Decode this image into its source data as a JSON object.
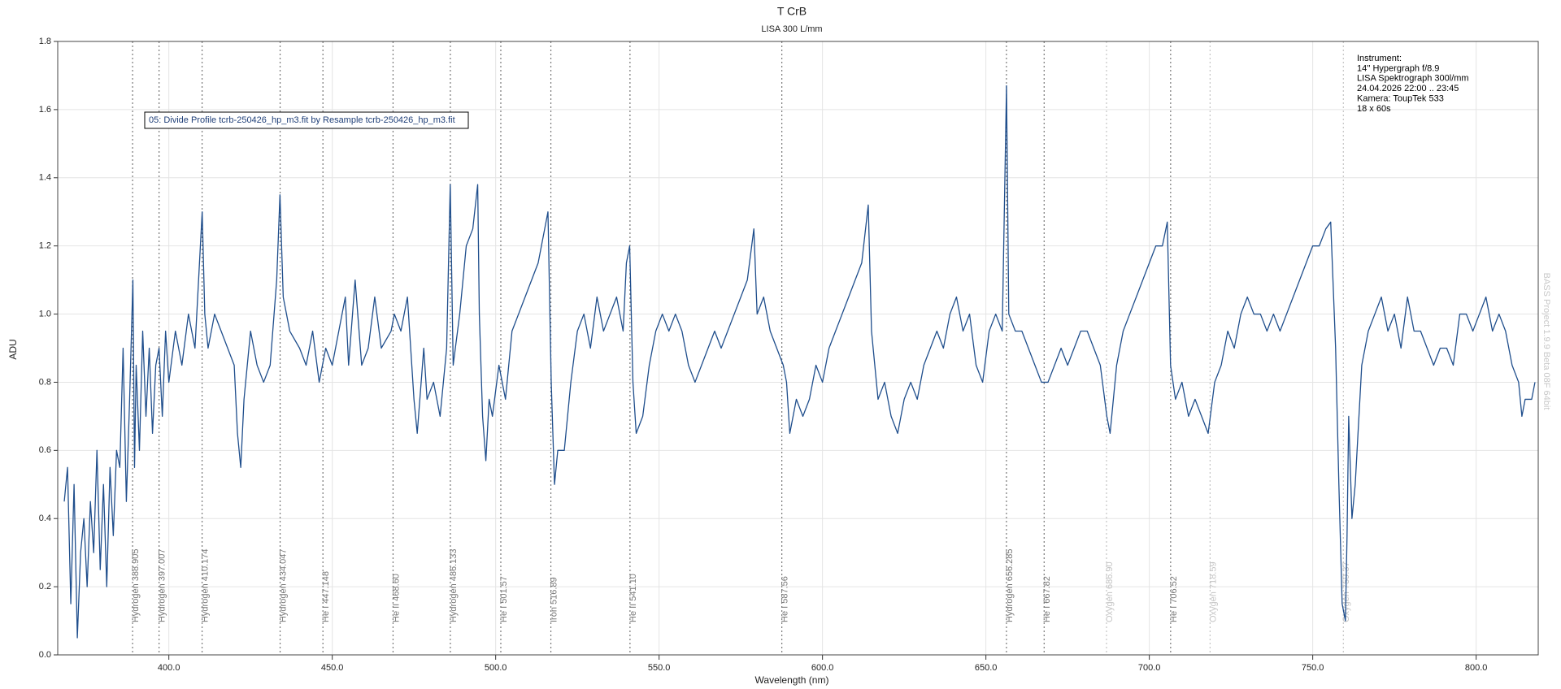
{
  "chart_data": {
    "type": "line",
    "title": "T CrB",
    "subtitle": "LISA 300 L/mm",
    "xlabel": "Wavelength (nm)",
    "ylabel": "ADU",
    "annotation": "05: Divide Profile tcrb-250426_hp_m3.fit by Resample tcrb-250426_hp_m3.fit",
    "info": [
      "Instrument:",
      "14'' Hypergraph f/8.9",
      "LISA Spektrograph 300l/mm",
      "24.04.2026 22:00 .. 23:45",
      "Kamera: ToupTek 533",
      "18 x 60s"
    ],
    "watermark": "BASS Project 1.9.9 Beta 08F 64bit",
    "color": "#1f4e8c",
    "grid": true,
    "xlim": [
      366,
      819
    ],
    "ylim": [
      0,
      1.8
    ],
    "xticks": [
      {
        "value": 400,
        "label": "400.0"
      },
      {
        "value": 450,
        "label": "450.0"
      },
      {
        "value": 500,
        "label": "500.0"
      },
      {
        "value": 550,
        "label": "550.0"
      },
      {
        "value": 600,
        "label": "600.0"
      },
      {
        "value": 650,
        "label": "650.0"
      },
      {
        "value": 700,
        "label": "700.0"
      },
      {
        "value": 750,
        "label": "750.0"
      },
      {
        "value": 800,
        "label": "800.0"
      }
    ],
    "yticks": [
      {
        "value": 0,
        "label": "0.0"
      },
      0.2,
      0.4,
      0.6,
      0.8,
      {
        "value": 1,
        "label": "1.0"
      },
      1.2,
      1.4,
      1.6,
      1.8
    ],
    "lines": [
      {
        "x": 388.905,
        "label": "Hydrogen 388.905",
        "color": "#777777"
      },
      {
        "x": 397.007,
        "label": "Hydrogen 397.007",
        "color": "#777777"
      },
      {
        "x": 410.174,
        "label": "Hydrogen 410.174",
        "color": "#777777"
      },
      {
        "x": 434.047,
        "label": "Hydrogen 434.047",
        "color": "#777777"
      },
      {
        "x": 447.148,
        "label": "He I 447.148",
        "color": "#777777"
      },
      {
        "x": 468.6,
        "label": "He II 468.60",
        "color": "#777777"
      },
      {
        "x": 486.133,
        "label": "Hydrogen 486.133",
        "color": "#777777"
      },
      {
        "x": 501.57,
        "label": "He I 501.57",
        "color": "#777777"
      },
      {
        "x": 516.89,
        "label": "Iron 516.89",
        "color": "#777777"
      },
      {
        "x": 541.1,
        "label": "He II 541.10",
        "color": "#777777"
      },
      {
        "x": 587.56,
        "label": "He I 587.56",
        "color": "#777777"
      },
      {
        "x": 656.285,
        "label": "Hydrogen 656.285",
        "color": "#777777"
      },
      {
        "x": 667.82,
        "label": "He I 667.82",
        "color": "#777777"
      },
      {
        "x": 686.9,
        "label": "Oxygen 686.90",
        "color": "#c4c4c4"
      },
      {
        "x": 706.52,
        "label": "He I 706.52",
        "color": "#777777"
      },
      {
        "x": 718.59,
        "label": "Oxygen 718.59",
        "color": "#c4c4c4"
      },
      {
        "x": 759.37,
        "label": "Oxygen 759.37",
        "color": "#c4c4c4"
      }
    ],
    "x": [
      368,
      369,
      370,
      371,
      372,
      373,
      374,
      375,
      376,
      377,
      378,
      379,
      380,
      381,
      382,
      383,
      384,
      385,
      386,
      387,
      388,
      389,
      389.5,
      390,
      391,
      392,
      393,
      394,
      395,
      396,
      397,
      398,
      399,
      400,
      402,
      404,
      406,
      408,
      410.2,
      411,
      412,
      414,
      416,
      418,
      420,
      421,
      422,
      423,
      425,
      427,
      429,
      431,
      433,
      434,
      435,
      437,
      440,
      442,
      444,
      446,
      448,
      450,
      452,
      454,
      455,
      457,
      459,
      461,
      463,
      465,
      468,
      469,
      471,
      473,
      475,
      476,
      478,
      479,
      481,
      483,
      485,
      486.1,
      487,
      489,
      491,
      493,
      494.5,
      495,
      496,
      497,
      498,
      499,
      501,
      503,
      505,
      507,
      509,
      511,
      513,
      515,
      516,
      517,
      518,
      519,
      521,
      523,
      525,
      527,
      529,
      531,
      533,
      535,
      537,
      539,
      540,
      541,
      542,
      543,
      545,
      547,
      549,
      551,
      553,
      555,
      557,
      559,
      561,
      563,
      565,
      567,
      569,
      571,
      573,
      575,
      577,
      579,
      580,
      582,
      584,
      586,
      588,
      589,
      590,
      592,
      594,
      596,
      598,
      600,
      602,
      604,
      606,
      608,
      610,
      612,
      614,
      615,
      617,
      619,
      621,
      623,
      625,
      627,
      629,
      631,
      633,
      635,
      637,
      639,
      641,
      643,
      645,
      647,
      649,
      651,
      653,
      655,
      656.3,
      657,
      659,
      661,
      663,
      665,
      667,
      669,
      671,
      673,
      675,
      677,
      679,
      681,
      683,
      685,
      687,
      688,
      690,
      692,
      694,
      696,
      698,
      700,
      702,
      704,
      705.5,
      706.5,
      708,
      710,
      712,
      714,
      716,
      718,
      720,
      722,
      724,
      726,
      728,
      730,
      732,
      734,
      736,
      738,
      740,
      742,
      744,
      746,
      748,
      750,
      752,
      754,
      755.5,
      757,
      758,
      759,
      760,
      760.5,
      761,
      762,
      763,
      765,
      767,
      769,
      771,
      773,
      775,
      777,
      779,
      781,
      783,
      785,
      787,
      789,
      791,
      793,
      795,
      797,
      799,
      801,
      803,
      805,
      807,
      809,
      811,
      813,
      814,
      815,
      817,
      818
    ],
    "values": [
      0.45,
      0.55,
      0.15,
      0.5,
      0.05,
      0.3,
      0.4,
      0.2,
      0.45,
      0.3,
      0.6,
      0.25,
      0.5,
      0.2,
      0.55,
      0.35,
      0.6,
      0.55,
      0.9,
      0.45,
      0.75,
      1.1,
      0.55,
      0.85,
      0.6,
      0.95,
      0.7,
      0.9,
      0.65,
      0.85,
      0.9,
      0.7,
      0.95,
      0.8,
      0.95,
      0.85,
      1.0,
      0.9,
      1.3,
      1.0,
      0.9,
      1.0,
      0.95,
      0.9,
      0.85,
      0.65,
      0.55,
      0.75,
      0.95,
      0.85,
      0.8,
      0.85,
      1.1,
      1.35,
      1.05,
      0.95,
      0.9,
      0.85,
      0.95,
      0.8,
      0.9,
      0.85,
      0.95,
      1.05,
      0.85,
      1.1,
      0.85,
      0.9,
      1.05,
      0.9,
      0.95,
      1.0,
      0.95,
      1.05,
      0.75,
      0.65,
      0.9,
      0.75,
      0.8,
      0.7,
      0.9,
      1.38,
      0.85,
      1.0,
      1.2,
      1.25,
      1.38,
      1.0,
      0.7,
      0.57,
      0.75,
      0.7,
      0.85,
      0.75,
      0.95,
      1.0,
      1.05,
      1.1,
      1.15,
      1.25,
      1.3,
      0.8,
      0.5,
      0.6,
      0.6,
      0.8,
      0.95,
      1.0,
      0.9,
      1.05,
      0.95,
      1.0,
      1.05,
      0.95,
      1.15,
      1.2,
      0.8,
      0.65,
      0.7,
      0.85,
      0.95,
      1.0,
      0.95,
      1.0,
      0.95,
      0.85,
      0.8,
      0.85,
      0.9,
      0.95,
      0.9,
      0.95,
      1.0,
      1.05,
      1.1,
      1.25,
      1.0,
      1.05,
      0.95,
      0.9,
      0.85,
      0.8,
      0.65,
      0.75,
      0.7,
      0.75,
      0.85,
      0.8,
      0.9,
      0.95,
      1.0,
      1.05,
      1.1,
      1.15,
      1.32,
      0.95,
      0.75,
      0.8,
      0.7,
      0.65,
      0.75,
      0.8,
      0.75,
      0.85,
      0.9,
      0.95,
      0.9,
      1.0,
      1.05,
      0.95,
      1.0,
      0.85,
      0.8,
      0.95,
      1.0,
      0.95,
      1.67,
      1.0,
      0.95,
      0.95,
      0.9,
      0.85,
      0.8,
      0.8,
      0.85,
      0.9,
      0.85,
      0.9,
      0.95,
      0.95,
      0.9,
      0.85,
      0.7,
      0.65,
      0.85,
      0.95,
      1.0,
      1.05,
      1.1,
      1.15,
      1.2,
      1.2,
      1.27,
      0.85,
      0.75,
      0.8,
      0.7,
      0.75,
      0.7,
      0.65,
      0.8,
      0.85,
      0.95,
      0.9,
      1.0,
      1.05,
      1.0,
      1.0,
      0.95,
      1.0,
      0.95,
      1.0,
      1.05,
      1.1,
      1.15,
      1.2,
      1.2,
      1.25,
      1.27,
      0.9,
      0.5,
      0.15,
      0.1,
      0.35,
      0.7,
      0.4,
      0.5,
      0.85,
      0.95,
      1.0,
      1.05,
      0.95,
      1.0,
      0.9,
      1.05,
      0.95,
      0.95,
      0.9,
      0.85,
      0.9,
      0.9,
      0.85,
      1.0,
      1.0,
      0.95,
      1.0,
      1.05,
      0.95,
      1.0,
      0.95,
      0.85,
      0.8,
      0.7,
      0.75,
      0.75,
      0.8
    ]
  }
}
